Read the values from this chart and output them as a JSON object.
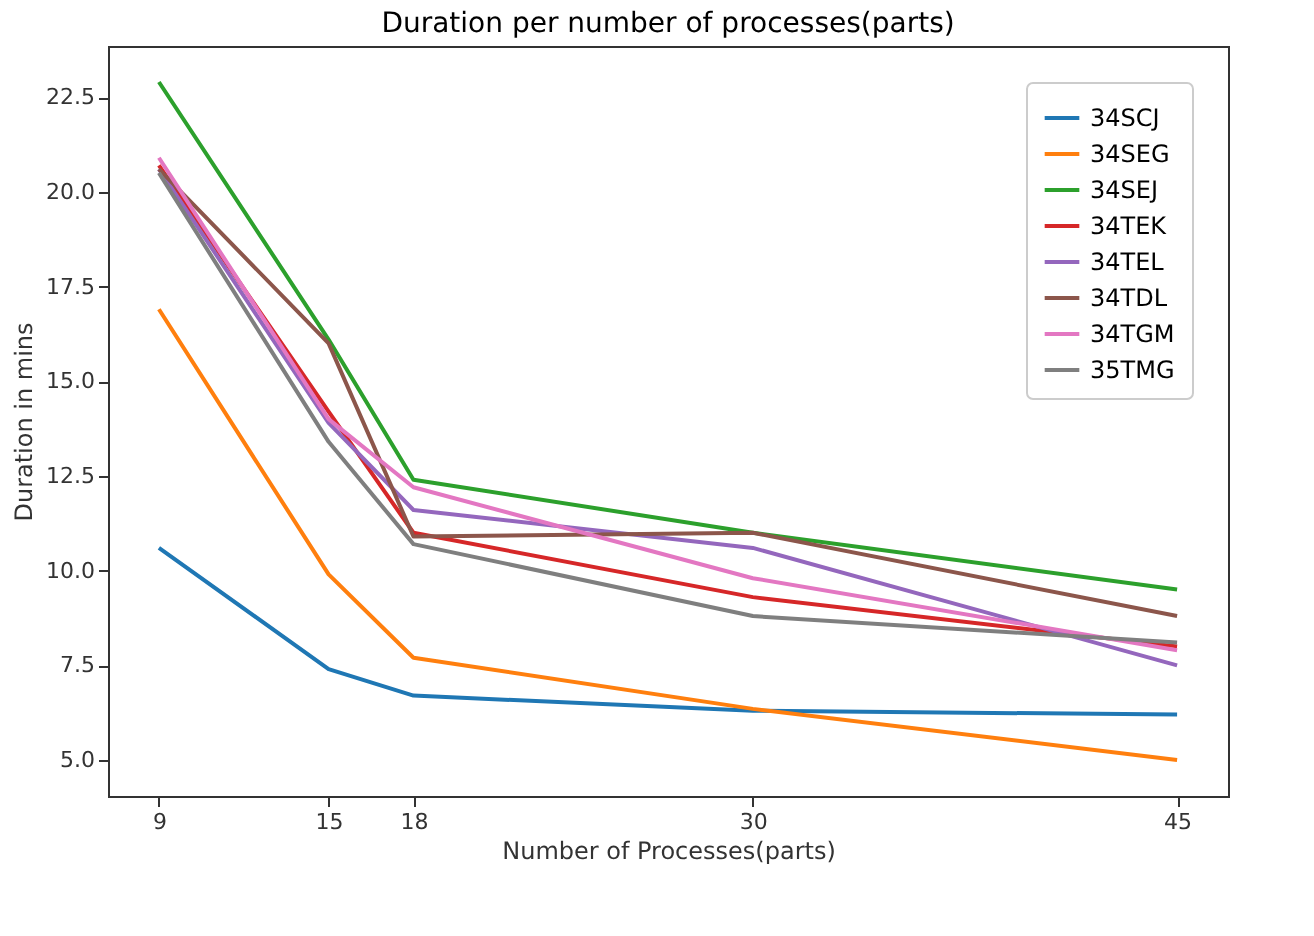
{
  "chart_data": {
    "type": "line",
    "title": "Duration per number of processes(parts)",
    "xlabel": "Number of Processes(parts)",
    "ylabel": "Duration in mins",
    "x": [
      9,
      15,
      18,
      30,
      45
    ],
    "series": [
      {
        "name": "34SCJ",
        "color": "#1f77b4",
        "values": [
          10.6,
          7.4,
          6.7,
          6.3,
          6.2
        ]
      },
      {
        "name": "34SEG",
        "color": "#ff7f0e",
        "values": [
          16.9,
          9.9,
          7.7,
          6.35,
          5.0
        ]
      },
      {
        "name": "34SEJ",
        "color": "#2ca02c",
        "values": [
          22.9,
          16.1,
          12.4,
          11.0,
          9.5
        ]
      },
      {
        "name": "34TEK",
        "color": "#d62728",
        "values": [
          20.7,
          14.2,
          11.0,
          9.3,
          8.0
        ]
      },
      {
        "name": "34TEL",
        "color": "#9467bd",
        "values": [
          20.6,
          13.9,
          11.6,
          10.6,
          7.5
        ]
      },
      {
        "name": "34TDL",
        "color": "#8c564b",
        "values": [
          20.6,
          16.0,
          10.9,
          11.0,
          8.8
        ]
      },
      {
        "name": "34TGM",
        "color": "#e377c2",
        "values": [
          20.9,
          14.0,
          12.2,
          9.8,
          7.9
        ]
      },
      {
        "name": "35TMG",
        "color": "#7f7f7f",
        "values": [
          20.5,
          13.4,
          10.7,
          8.8,
          8.1
        ]
      }
    ],
    "xlim": [
      7.2,
      46.8
    ],
    "xticks": [
      9,
      15,
      18,
      30,
      45
    ],
    "ylim": [
      4.05,
      23.85
    ],
    "yticks": [
      {
        "value": 5,
        "label": "5.0"
      },
      7.5,
      {
        "value": 10,
        "label": "10.0"
      },
      12.5,
      {
        "value": 15,
        "label": "15.0"
      },
      17.5,
      {
        "value": 20,
        "label": "20.0"
      },
      22.5
    ],
    "legend": "top right",
    "grid": false,
    "marker": "none",
    "line_style": "solid"
  }
}
